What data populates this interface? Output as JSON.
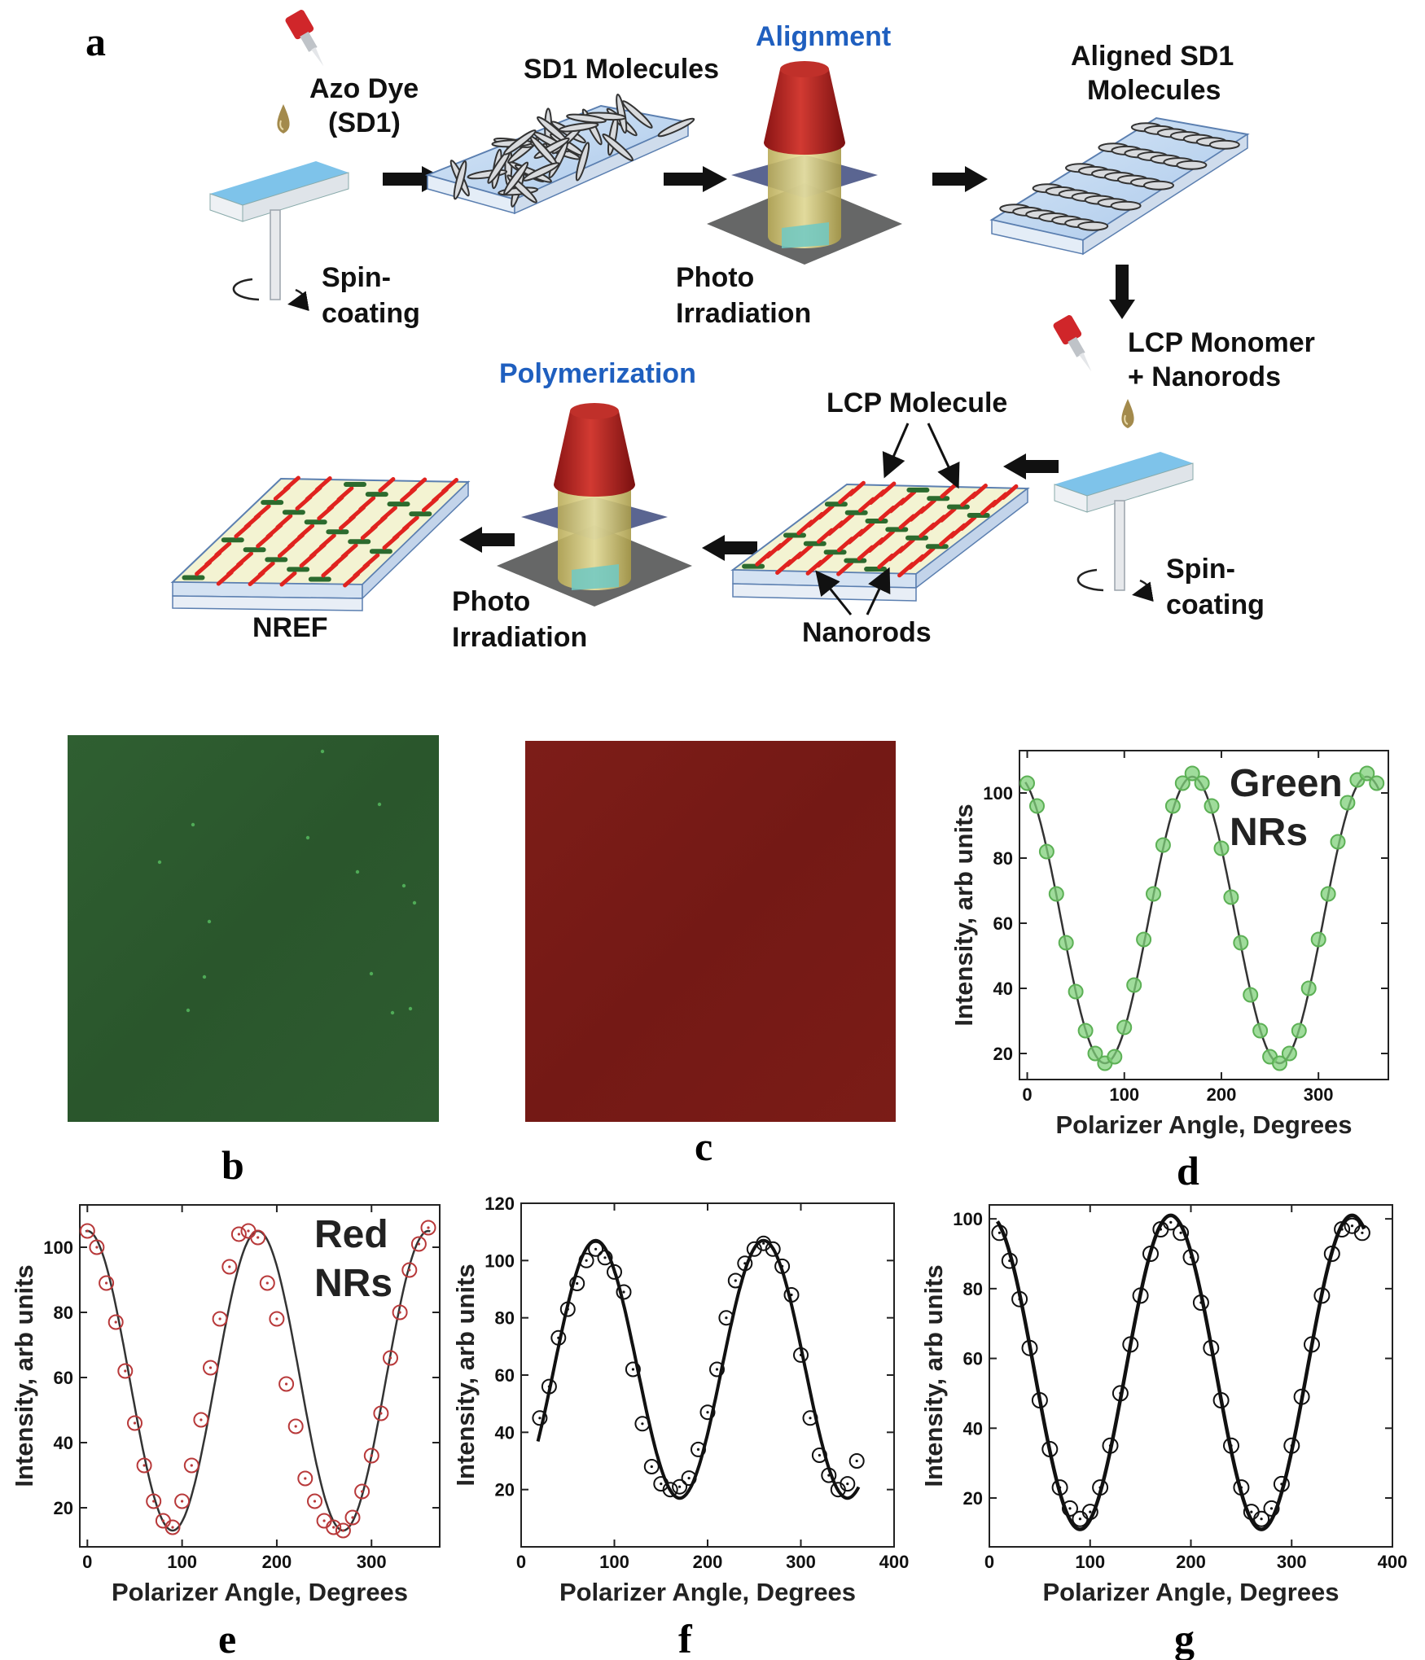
{
  "panel_letters": {
    "a": "a",
    "b": "b",
    "c": "c",
    "d": "d",
    "e": "e",
    "f": "f",
    "g": "g"
  },
  "schematic": {
    "azo_dye_line1": "Azo Dye",
    "azo_dye_line2": "(SD1)",
    "sd1_molecules": "SD1 Molecules",
    "alignment": "Alignment",
    "aligned_line1": "Aligned SD1",
    "aligned_line2": "Molecules",
    "spin1_line1": "Spin-",
    "spin1_line2": "coating",
    "photo1_line1": "Photo",
    "photo1_line2": "Irradiation",
    "lcp_monomer_line1": "LCP Monomer",
    "lcp_monomer_line2": "+ Nanorods",
    "polymerization": "Polymerization",
    "lcp_molecule": "LCP Molecule",
    "spin2_line1": "Spin-",
    "spin2_line2": "coating",
    "nref": "NREF",
    "photo2_line1": "Photo",
    "photo2_line2": "Irradiation",
    "nanorods": "Nanorods"
  },
  "colors": {
    "green_panel": "#2b5a2e",
    "red_panel": "#7a1c18",
    "green_marker": "#7fd07a",
    "red_marker": "#b8393a",
    "alignment_blue": "#1f5fbf"
  },
  "chart_data": [
    {
      "id": "d",
      "type": "line",
      "xlabel": "Polarizer Angle, Degrees",
      "ylabel": "Intensity, arb units",
      "legend_line1": "Green",
      "legend_line2": "NRs",
      "xlim": [
        -8,
        372
      ],
      "ylim": [
        12,
        113
      ],
      "xticks": [
        0,
        100,
        200,
        300
      ],
      "yticks": [
        20,
        40,
        60,
        80,
        100
      ],
      "fit": {
        "mean": 61,
        "amp": 44,
        "phase_deg": 170
      },
      "points_x": [
        0,
        10,
        20,
        30,
        40,
        50,
        60,
        70,
        80,
        90,
        100,
        110,
        120,
        130,
        140,
        150,
        160,
        170,
        180,
        190,
        200,
        210,
        220,
        230,
        240,
        250,
        260,
        270,
        280,
        290,
        300,
        310,
        320,
        330,
        340,
        350,
        360
      ],
      "points_y": [
        103,
        96,
        82,
        69,
        54,
        39,
        27,
        20,
        17,
        19,
        28,
        41,
        55,
        69,
        84,
        96,
        103,
        106,
        103,
        96,
        83,
        68,
        54,
        38,
        27,
        19,
        17,
        20,
        27,
        40,
        55,
        69,
        85,
        97,
        104,
        106,
        103
      ],
      "marker_color": "#7fd07a",
      "marker_stroke": "#5cb055"
    },
    {
      "id": "e",
      "type": "line",
      "xlabel": "Polarizer Angle, Degrees",
      "ylabel": "Intensity, arb units",
      "legend_line1": "Red",
      "legend_line2": "NRs",
      "xlim": [
        -8,
        372
      ],
      "ylim": [
        8,
        113
      ],
      "xticks": [
        0,
        100,
        200,
        300
      ],
      "yticks": [
        20,
        40,
        60,
        80,
        100
      ],
      "fit": {
        "mean": 59,
        "amp": 46,
        "phase_deg": 180
      },
      "points_x": [
        0,
        10,
        20,
        30,
        40,
        50,
        60,
        70,
        80,
        90,
        100,
        110,
        120,
        130,
        140,
        150,
        160,
        170,
        180,
        190,
        200,
        210,
        220,
        230,
        240,
        250,
        260,
        270,
        280,
        290,
        300,
        310,
        320,
        330,
        340,
        350,
        360
      ],
      "points_y": [
        105,
        100,
        89,
        77,
        62,
        46,
        33,
        22,
        16,
        14,
        22,
        33,
        47,
        63,
        78,
        94,
        104,
        105,
        103,
        89,
        78,
        58,
        45,
        29,
        22,
        16,
        14,
        13,
        17,
        25,
        36,
        49,
        66,
        80,
        93,
        101,
        106
      ],
      "marker_color": "none",
      "marker_stroke": "#b8393a"
    },
    {
      "id": "f",
      "type": "line",
      "xlabel": "Polarizer Angle, Degrees",
      "ylabel": "Intensity, arb units",
      "xlim": [
        0,
        400
      ],
      "ylim": [
        0,
        120
      ],
      "xticks": [
        0,
        100,
        200,
        300,
        400
      ],
      "yticks": [
        20,
        40,
        60,
        80,
        100,
        120
      ],
      "fit": {
        "mean": 62,
        "amp": 45,
        "phase_deg": 80
      },
      "points_x": [
        20,
        30,
        40,
        50,
        60,
        70,
        80,
        90,
        100,
        110,
        120,
        130,
        140,
        150,
        160,
        170,
        180,
        190,
        200,
        210,
        220,
        230,
        240,
        250,
        260,
        270,
        280,
        290,
        300,
        310,
        320,
        330,
        340,
        350,
        360
      ],
      "points_y": [
        45,
        56,
        73,
        83,
        92,
        100,
        104,
        101,
        96,
        89,
        62,
        43,
        28,
        22,
        20,
        21,
        24,
        34,
        47,
        62,
        80,
        93,
        99,
        104,
        106,
        104,
        98,
        88,
        67,
        45,
        32,
        25,
        20,
        22,
        30
      ],
      "marker_color": "none",
      "marker_stroke": "#111111"
    },
    {
      "id": "g",
      "type": "line",
      "xlabel": "Polarizer Angle, Degrees",
      "ylabel": "Intensity, arb units",
      "xlim": [
        0,
        400
      ],
      "ylim": [
        6,
        104
      ],
      "xticks": [
        0,
        100,
        200,
        300,
        400
      ],
      "yticks": [
        20,
        40,
        60,
        80,
        100
      ],
      "fit": {
        "mean": 56,
        "amp": 45,
        "phase_deg": 180
      },
      "points_x": [
        10,
        20,
        30,
        40,
        50,
        60,
        70,
        80,
        90,
        100,
        110,
        120,
        130,
        140,
        150,
        160,
        170,
        180,
        190,
        200,
        210,
        220,
        230,
        240,
        250,
        260,
        270,
        280,
        290,
        300,
        310,
        320,
        330,
        340,
        350,
        360,
        370
      ],
      "points_y": [
        96,
        88,
        77,
        63,
        48,
        34,
        23,
        17,
        14,
        16,
        23,
        35,
        50,
        64,
        78,
        90,
        97,
        99,
        96,
        89,
        76,
        63,
        48,
        35,
        23,
        16,
        14,
        17,
        24,
        35,
        49,
        64,
        78,
        90,
        97,
        98,
        96
      ],
      "marker_color": "none",
      "marker_stroke": "#111111"
    }
  ]
}
